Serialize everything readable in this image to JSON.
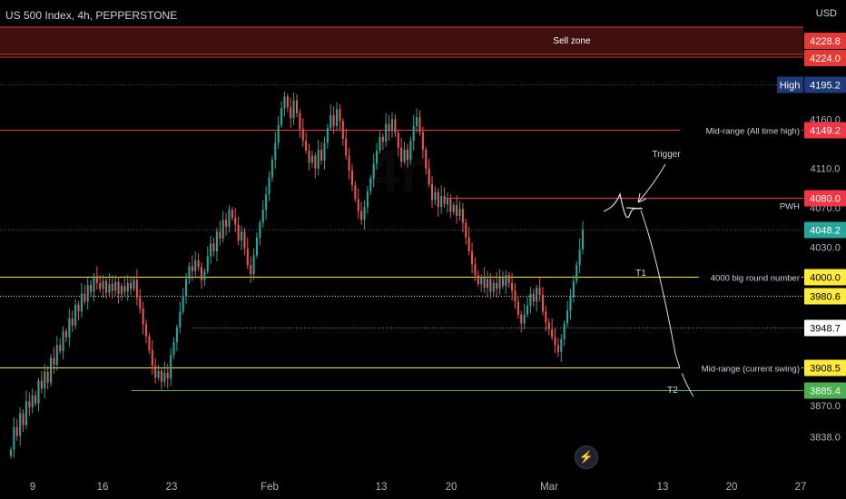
{
  "header": {
    "symbol_title": "US 500 Index, 4h, PEPPERSTONE",
    "currency": "USD"
  },
  "watermark": {
    "big": "4h",
    "small": ""
  },
  "bolt_icon": "lightning-icon",
  "chart_data": {
    "type": "candlestick",
    "y_axis": {
      "range": [
        3820,
        4250
      ],
      "tick_labels": [
        "4160.0",
        "4110.0",
        "4070.0",
        "4030.0",
        "3870.0",
        "3838.0"
      ],
      "tick_values": [
        4160,
        4110,
        4070,
        4030,
        3870,
        3838
      ]
    },
    "x_axis": {
      "tick_labels": [
        "9",
        "16",
        "23",
        "Feb",
        "13",
        "20",
        "Mar",
        "13",
        "20",
        "27"
      ]
    },
    "zone": {
      "label": "Sell zone",
      "top": 4228.8,
      "bottom": 4224.0,
      "color": "#e53935"
    },
    "levels": [
      {
        "value": 4195.2,
        "price_label": "4195.2",
        "tag": "High",
        "color": "#1e3a78",
        "text_color": "#ffffff",
        "line": "dotted"
      },
      {
        "value": 4149.2,
        "price_label": "4149.2",
        "tag": "Mid-range (All time high)",
        "color": "#f23645",
        "text_color": "#ffffff",
        "line": "solid"
      },
      {
        "value": 4080.0,
        "price_label": "4080.0",
        "tag": "PWH",
        "color": "#f23645",
        "text_color": "#ffffff",
        "line": "solid"
      },
      {
        "value": 4048.2,
        "price_label": "4048.2",
        "tag": "",
        "color": "#26a69a",
        "text_color": "#ffffff",
        "line": "dotted"
      },
      {
        "value": 4000.0,
        "price_label": "4000.0",
        "tag": "4000 big round number",
        "color": "#ffeb3b",
        "text_color": "#000000",
        "line": "solid"
      },
      {
        "value": 3980.6,
        "price_label": "3980.6",
        "tag": "",
        "color": "#ffeb3b",
        "text_color": "#000000",
        "line": "dotted"
      },
      {
        "value": 3948.7,
        "price_label": "3948.7",
        "tag": "",
        "color": "#ffffff",
        "text_color": "#000000",
        "line": "dotted"
      },
      {
        "value": 3908.5,
        "price_label": "3908.5",
        "tag": "Mid-range (current swing)",
        "color": "#ffeb3b",
        "text_color": "#000000",
        "line": "solid"
      },
      {
        "value": 3885.4,
        "price_label": "3885.4",
        "tag": "",
        "color": "#4caf50",
        "text_color": "#ffffff",
        "line": "solid"
      }
    ],
    "annotations": [
      {
        "text": "Trigger"
      },
      {
        "text": "T1"
      },
      {
        "text": "T2"
      }
    ],
    "colors": {
      "up": "#26a69a",
      "down": "#ef5350"
    },
    "close": [
      3825,
      3848,
      3839,
      3862,
      3850,
      3874,
      3868,
      3880,
      3872,
      3895,
      3887,
      3904,
      3893,
      3918,
      3911,
      3931,
      3925,
      3945,
      3939,
      3958,
      3951,
      3972,
      3965,
      3983,
      3975,
      3992,
      3985,
      4001,
      3994,
      3988,
      3996,
      3984,
      3993,
      3986,
      3995,
      3983,
      3991,
      3985,
      3994,
      3988,
      3997,
      3979,
      3968,
      3952,
      3940,
      3926,
      3910,
      3898,
      3905,
      3894,
      3903,
      3897,
      3921,
      3934,
      3949,
      3965,
      3981,
      3998,
      4011,
      4006,
      4017,
      4010,
      3997,
      4006,
      4021,
      4034,
      4026,
      4046,
      4039,
      4058,
      4051,
      4068,
      4060,
      4053,
      4037,
      4046,
      4029,
      4012,
      4003,
      4022,
      4040,
      4055,
      4068,
      4084,
      4101,
      4119,
      4136,
      4154,
      4171,
      4183,
      4172,
      4161,
      4179,
      4166,
      4150,
      4138,
      4128,
      4116,
      4123,
      4110,
      4129,
      4118,
      4136,
      4151,
      4164,
      4153,
      4170,
      4158,
      4140,
      4123,
      4108,
      4093,
      4079,
      4067,
      4058,
      4071,
      4087,
      4100,
      4115,
      4128,
      4142,
      4137,
      4155,
      4148,
      4160,
      4146,
      4131,
      4117,
      4129,
      4119,
      4138,
      4153,
      4162,
      4147,
      4129,
      4110,
      4094,
      4078,
      4086,
      4071,
      4082,
      4074,
      4079,
      4066,
      4073,
      4062,
      4069,
      4055,
      4040,
      4026,
      4013,
      4002,
      3993,
      4000,
      3989,
      3998,
      3985,
      3994,
      3988,
      3999,
      3991,
      4002,
      3994,
      3986,
      3975,
      3962,
      3953,
      3962,
      3971,
      3983,
      3975,
      3989,
      3982,
      3965,
      3954,
      3947,
      3939,
      3931,
      3924,
      3937,
      3953,
      3966,
      3980,
      3996,
      4012,
      4028,
      4048
    ]
  }
}
